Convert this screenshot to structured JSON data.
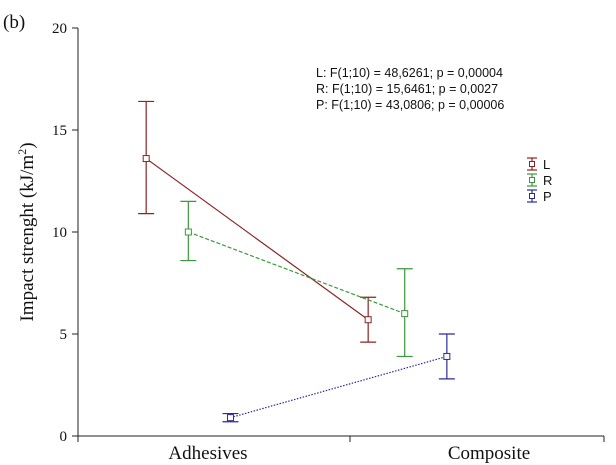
{
  "chart_data": {
    "type": "line",
    "panel_label": "(b)",
    "ylabel": "Impact strenght (kJ/m",
    "ylabel_sup": "2",
    "ylabel_close": ")",
    "ylim": [
      0,
      20
    ],
    "yticks": [
      0,
      5,
      10,
      15,
      20
    ],
    "categories": [
      "Adhesives",
      "Composite"
    ],
    "legend_position": "right",
    "annotations": [
      "L:   F(1;10) = 48,6261; p = 0,00004",
      "R:   F(1;10) = 15,6461; p = 0,0027",
      "P:   F(1;10) = 43,0806; p = 0,00006"
    ],
    "series": [
      {
        "name": "L",
        "color": "#8b2323",
        "dash": "solid",
        "x": [
          -0.22,
          0.57
        ],
        "values": [
          13.6,
          5.7
        ],
        "lower": [
          10.9,
          4.6
        ],
        "upper": [
          16.4,
          6.8
        ]
      },
      {
        "name": "R",
        "color": "#3a9a3a",
        "dash": "dash",
        "x": [
          -0.07,
          0.7
        ],
        "values": [
          10.0,
          6.0
        ],
        "lower": [
          8.6,
          3.9
        ],
        "upper": [
          11.5,
          8.2
        ]
      },
      {
        "name": "P",
        "color": "#2a2a9a",
        "dash": "dot",
        "x": [
          0.08,
          0.85
        ],
        "values": [
          0.9,
          3.9
        ],
        "lower": [
          0.7,
          2.8
        ],
        "upper": [
          1.1,
          5.0
        ]
      }
    ]
  }
}
